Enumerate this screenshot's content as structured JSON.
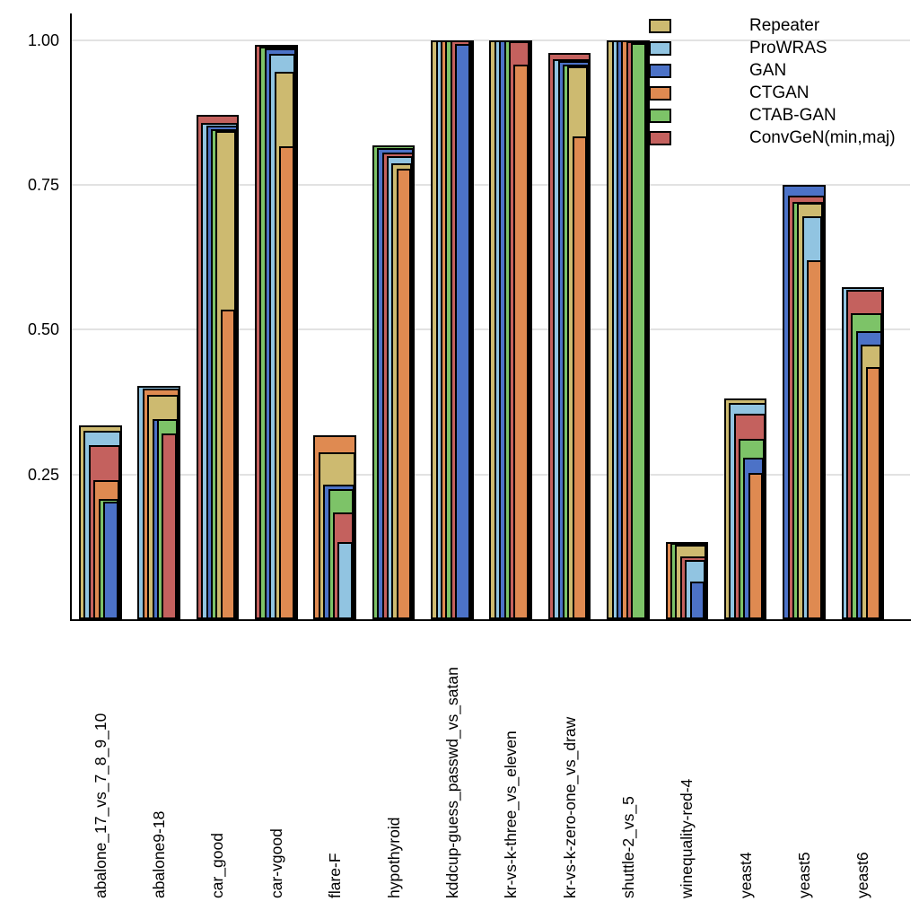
{
  "chart_data": {
    "type": "bar",
    "variant": "overlaid-nested-bars",
    "title": "",
    "xlabel": "",
    "ylabel": "",
    "ylim": [
      0,
      1.045
    ],
    "yticks": [
      0.25,
      0.5,
      0.75,
      1.0
    ],
    "ytick_labels": [
      "0.25",
      "0.50",
      "0.75",
      "1.00"
    ],
    "grid": "horizontal-only",
    "legend_position": "top-right-inside",
    "background_color": "#ffffff",
    "gridline_color": "#e2e2e2",
    "bar_border_color": "#000000",
    "categories": [
      "abalone_17_vs_7_8_9_10",
      "abalone9-18",
      "car_good",
      "car-vgood",
      "flare-F",
      "hypothyroid",
      "kddcup-guess_passwd_vs_satan",
      "kr-vs-k-three_vs_eleven",
      "kr-vs-k-zero-one_vs_draw",
      "shuttle-2_vs_5",
      "winequality-red-4",
      "yeast4",
      "yeast5",
      "yeast6"
    ],
    "series": [
      {
        "name": "Repeater",
        "color": "#cdba70",
        "values": [
          0.335,
          0.387,
          0.843,
          0.945,
          0.288,
          0.787,
          1.0,
          1.0,
          0.954,
          1.0,
          0.128,
          0.381,
          0.719,
          0.474
        ]
      },
      {
        "name": "ProWRAS",
        "color": "#91c4e1",
        "values": [
          0.326,
          0.403,
          0.856,
          0.976,
          0.133,
          0.799,
          1.0,
          1.0,
          0.967,
          1.0,
          0.102,
          0.374,
          0.696,
          0.573
        ]
      },
      {
        "name": "GAN",
        "color": "#4c72c7",
        "values": [
          0.203,
          0.346,
          0.852,
          0.985,
          0.232,
          0.814,
          0.993,
          1.0,
          0.964,
          1.0,
          0.065,
          0.279,
          0.75,
          0.497
        ]
      },
      {
        "name": "CTGAN",
        "color": "#df8a51",
        "values": [
          0.24,
          0.398,
          0.535,
          0.817,
          0.318,
          0.778,
          1.0,
          0.957,
          0.833,
          1.0,
          0.133,
          0.252,
          0.62,
          0.435
        ]
      },
      {
        "name": "CTAB-GAN",
        "color": "#7dc368",
        "values": [
          0.207,
          0.346,
          0.846,
          0.988,
          0.225,
          0.818,
          1.0,
          1.0,
          0.958,
          0.994,
          0.131,
          0.312,
          0.721,
          0.529
        ]
      },
      {
        "name": "ConvGeN(min,maj)",
        "color": "#c4615e",
        "values": [
          0.3,
          0.32,
          0.87,
          0.991,
          0.185,
          0.805,
          1.0,
          0.997,
          0.978,
          0.998,
          0.109,
          0.355,
          0.731,
          0.568
        ]
      }
    ]
  }
}
